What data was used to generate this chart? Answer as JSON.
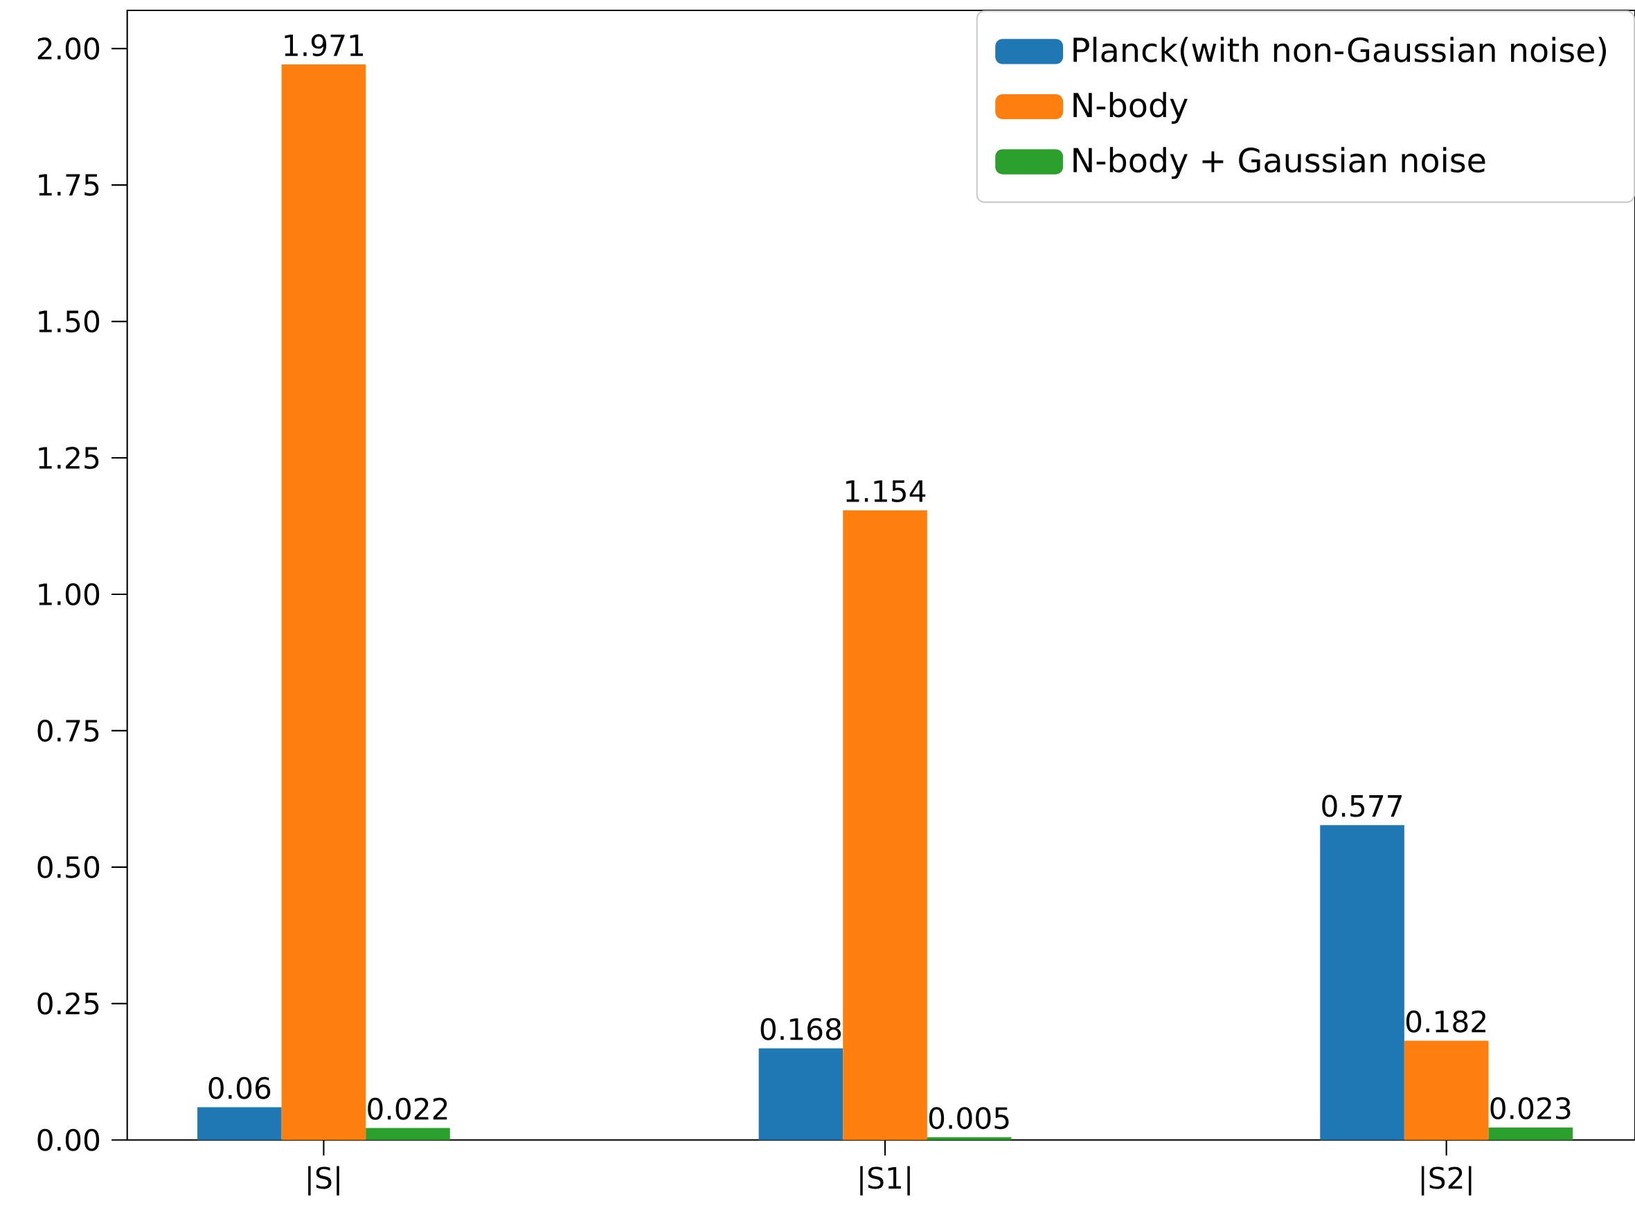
{
  "chart_data": {
    "type": "bar",
    "categories": [
      "|S|",
      "|S1|",
      "|S2|"
    ],
    "series": [
      {
        "name": "Planck(with non-Gaussian noise)",
        "color": "#1f77b4",
        "values": [
          0.06,
          0.168,
          0.577
        ]
      },
      {
        "name": "N-body",
        "color": "#ff7f0e",
        "values": [
          1.971,
          1.154,
          0.182
        ]
      },
      {
        "name": "N-body + Gaussian noise",
        "color": "#2ca02c",
        "values": [
          0.022,
          0.005,
          0.023
        ]
      }
    ],
    "ylim": [
      0,
      2.07
    ],
    "yticks": [
      {
        "value": 0,
        "label": "0.00"
      },
      {
        "value": 0.25,
        "label": "0.25"
      },
      {
        "value": 0.5,
        "label": "0.50"
      },
      {
        "value": 0.75,
        "label": "0.75"
      },
      {
        "value": 1,
        "label": "1.00"
      },
      {
        "value": 1.25,
        "label": "1.25"
      },
      {
        "value": 1.5,
        "label": "1.50"
      },
      {
        "value": 1.75,
        "label": "1.75"
      },
      {
        "value": 2,
        "label": "2.00"
      }
    ],
    "data_labels": true,
    "legend": "top right"
  }
}
